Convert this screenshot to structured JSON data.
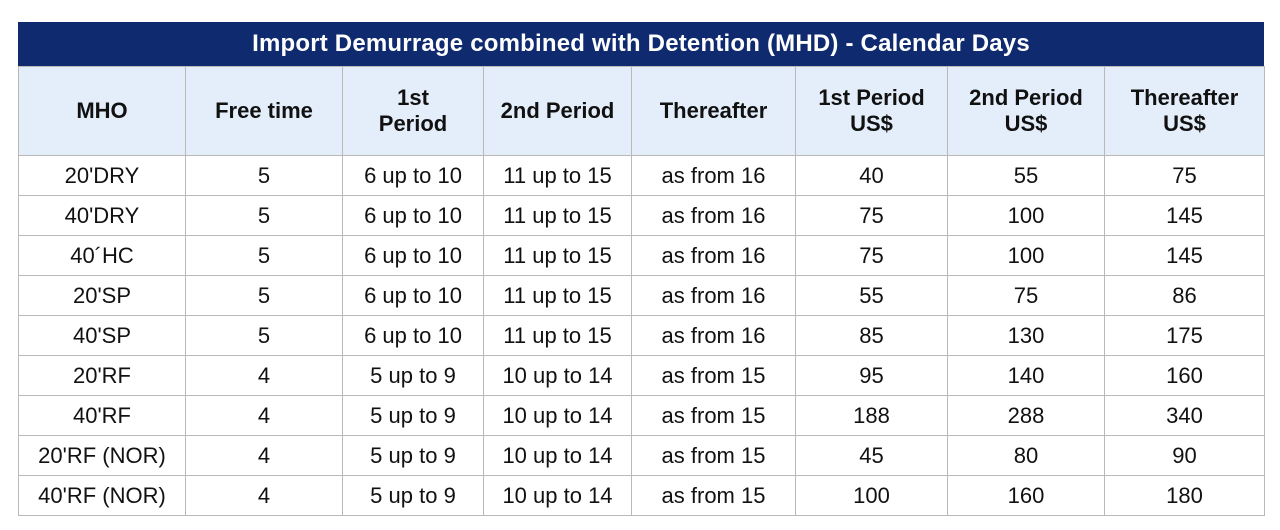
{
  "title": "Import Demurrage combined with Detention (MHD) - Calendar Days",
  "columns": [
    "MHO",
    "Free time",
    "1st\nPeriod",
    "2nd Period",
    "Thereafter",
    "1st Period\nUS$",
    "2nd Period\nUS$",
    "Thereafter\nUS$"
  ],
  "rows": [
    [
      "20'DRY",
      "5",
      "6 up to 10",
      "11 up to 15",
      "as from 16",
      "40",
      "55",
      "75"
    ],
    [
      "40'DRY",
      "5",
      "6 up to 10",
      "11 up to 15",
      "as from 16",
      "75",
      "100",
      "145"
    ],
    [
      "40´HC",
      "5",
      "6 up to 10",
      "11 up to 15",
      "as from 16",
      "75",
      "100",
      "145"
    ],
    [
      "20'SP",
      "5",
      "6 up to 10",
      "11 up to 15",
      "as from 16",
      "55",
      "75",
      "86"
    ],
    [
      "40'SP",
      "5",
      "6 up to 10",
      "11 up to 15",
      "as from 16",
      "85",
      "130",
      "175"
    ],
    [
      "20'RF",
      "4",
      "5 up to 9",
      "10 up to 14",
      "as from 15",
      "95",
      "140",
      "160"
    ],
    [
      "40'RF",
      "4",
      "5 up to 9",
      "10 up to 14",
      "as from 15",
      "188",
      "288",
      "340"
    ],
    [
      "20'RF (NOR)",
      "4",
      "5 up to 9",
      "10 up to 14",
      "as from 15",
      "45",
      "80",
      "90"
    ],
    [
      "40'RF (NOR)",
      "4",
      "5 up to 9",
      "10 up to 14",
      "as from 15",
      "100",
      "160",
      "180"
    ]
  ],
  "colors": {
    "title_bg": "#0f2a6e",
    "header_bg": "#e4eefb",
    "border": "#b9b9b9"
  }
}
